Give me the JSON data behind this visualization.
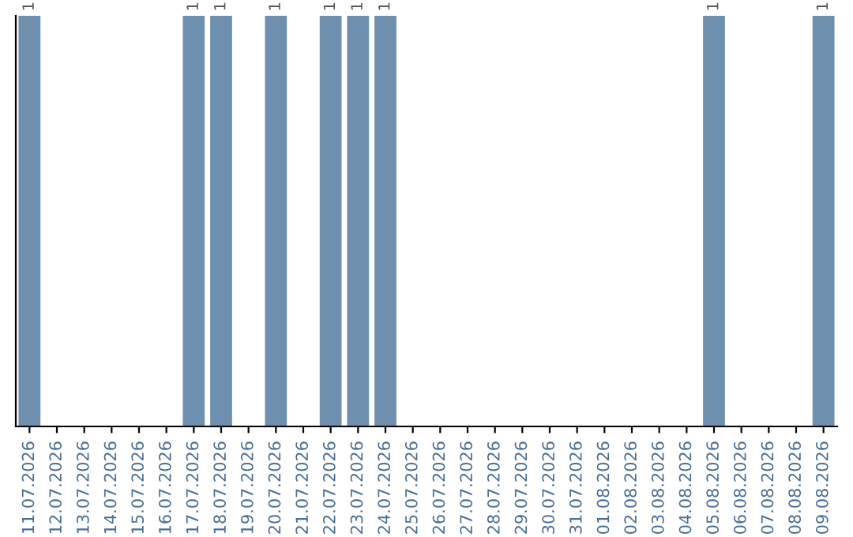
{
  "chart_data": {
    "type": "bar",
    "categories": [
      "11.07.2026",
      "12.07.2026",
      "13.07.2026",
      "14.07.2026",
      "15.07.2026",
      "16.07.2026",
      "17.07.2026",
      "18.07.2026",
      "19.07.2026",
      "20.07.2026",
      "21.07.2026",
      "22.07.2026",
      "23.07.2026",
      "24.07.2026",
      "25.07.2026",
      "26.07.2026",
      "27.07.2026",
      "28.07.2026",
      "29.07.2026",
      "30.07.2026",
      "31.07.2026",
      "01.08.2026",
      "02.08.2026",
      "03.08.2026",
      "04.08.2026",
      "05.08.2026",
      "06.08.2026",
      "07.08.2026",
      "08.08.2026",
      "09.08.2026"
    ],
    "values": [
      1,
      0,
      0,
      0,
      0,
      0,
      1,
      1,
      0,
      1,
      0,
      1,
      1,
      1,
      0,
      0,
      0,
      0,
      0,
      0,
      0,
      0,
      0,
      0,
      0,
      1,
      0,
      0,
      0,
      1
    ],
    "value_labels": [
      "1",
      null,
      null,
      null,
      null,
      null,
      "1",
      "1",
      null,
      "1",
      null,
      "1",
      "1",
      "1",
      null,
      null,
      null,
      null,
      null,
      null,
      null,
      null,
      null,
      null,
      null,
      "1",
      null,
      null,
      null,
      "1"
    ],
    "color": "#6e8fad",
    "tick_labels": "x",
    "grid": false,
    "legend": false
  }
}
